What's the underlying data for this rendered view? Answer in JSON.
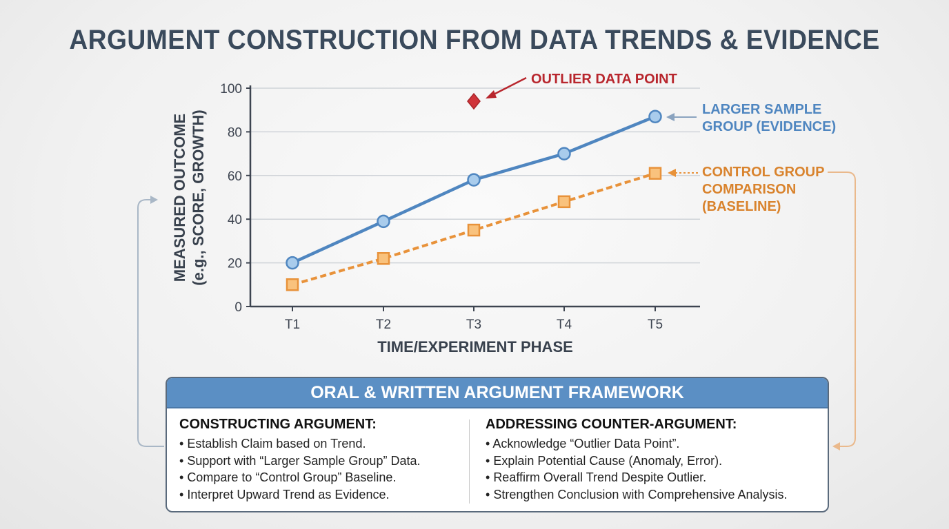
{
  "title": "ARGUMENT CONSTRUCTION FROM DATA TRENDS & EVIDENCE",
  "chart_data": {
    "type": "line",
    "xlabel": "TIME/EXPERIMENT PHASE",
    "ylabel": "MEASURED OUTCOME",
    "ylabel2": "(e.g., SCORE, GROWTH)",
    "categories": [
      "T1",
      "T2",
      "T3",
      "T4",
      "T5"
    ],
    "ylim": [
      0,
      100
    ],
    "yticks": [
      0,
      20,
      40,
      60,
      80,
      100
    ],
    "grid": true,
    "series": [
      {
        "name": "LARGER SAMPLE GROUP (EVIDENCE)",
        "name_lines": [
          "LARGER SAMPLE",
          "GROUP (EVIDENCE)"
        ],
        "values": [
          20,
          39,
          58,
          70,
          87
        ],
        "color": "#4f86c0",
        "marker": "circle",
        "style": "solid"
      },
      {
        "name": "CONTROL GROUP COMPARISON (BASELINE)",
        "name_lines": [
          "CONTROL GROUP",
          "COMPARISON",
          "(BASELINE)"
        ],
        "values": [
          10,
          22,
          35,
          48,
          61
        ],
        "color": "#e8923a",
        "marker": "square",
        "style": "dashed"
      }
    ],
    "outlier": {
      "label": "OUTLIER DATA POINT",
      "x": "T3",
      "y": 94,
      "color": "#d0343a"
    }
  },
  "framework": {
    "title": "ORAL & WRITTEN ARGUMENT FRAMEWORK",
    "left": {
      "heading": "CONSTRUCTING ARGUMENT:",
      "items": [
        "Establish Claim based on Trend.",
        "Support with “Larger Sample Group” Data.",
        "Compare to “Control Group” Baseline.",
        "Interpret Upward Trend as Evidence."
      ]
    },
    "right": {
      "heading": "ADDRESSING COUNTER-ARGUMENT:",
      "items": [
        "Acknowledge “Outlier Data Point”.",
        "Explain Potential Cause (Anomaly, Error).",
        "Reaffirm Overall Trend Despite Outlier.",
        "Strengthen Conclusion with Comprehensive Analysis."
      ]
    }
  }
}
